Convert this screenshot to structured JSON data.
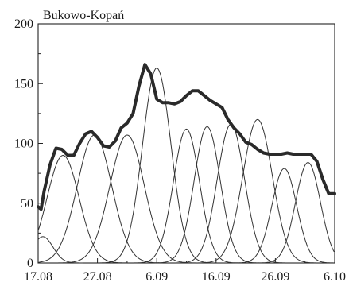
{
  "chart_data": {
    "type": "line",
    "title": "Bukowo-Kopań",
    "xlabel": "",
    "ylabel": "",
    "x_ticks": [
      "17.08",
      "27.08",
      "6.09",
      "16.09",
      "26.09",
      "6.10"
    ],
    "y_ticks": [
      "0",
      "50",
      "100",
      "150",
      "200"
    ],
    "xlim": [
      0,
      50
    ],
    "ylim": [
      0,
      200
    ],
    "grid": false,
    "total": {
      "x": [
        0,
        0.5,
        1,
        2,
        3,
        4,
        5,
        6,
        7,
        8,
        9,
        10,
        11,
        12,
        13,
        14,
        15,
        16,
        17,
        18,
        19,
        20,
        21,
        22,
        23,
        24,
        25,
        26,
        27,
        28,
        29,
        30,
        31,
        32,
        33,
        34,
        35,
        36,
        37,
        38,
        39,
        40,
        41,
        42,
        43,
        44,
        45,
        46,
        47,
        48,
        49,
        50
      ],
      "y": [
        47,
        45,
        60,
        82,
        96,
        95,
        90,
        90,
        100,
        108,
        110,
        105,
        98,
        97,
        102,
        113,
        117,
        125,
        148,
        166,
        158,
        137,
        134,
        134,
        133,
        135,
        140,
        144,
        144,
        140,
        136,
        133,
        130,
        120,
        113,
        108,
        101,
        99,
        95,
        92,
        91,
        91,
        91,
        92,
        91,
        91,
        91,
        91,
        85,
        70,
        58,
        58
      ]
    },
    "components": [
      {
        "center": 0.8,
        "peak": 22,
        "width": 1.7
      },
      {
        "center": 4.2,
        "peak": 90,
        "width": 2.7
      },
      {
        "center": 9.5,
        "peak": 107,
        "width": 2.9
      },
      {
        "center": 15,
        "peak": 107,
        "width": 2.9
      },
      {
        "center": 20,
        "peak": 163,
        "width": 2.4
      },
      {
        "center": 25,
        "peak": 112,
        "width": 2.2
      },
      {
        "center": 28.5,
        "peak": 114,
        "width": 2.2
      },
      {
        "center": 32.5,
        "peak": 116,
        "width": 2.3
      },
      {
        "center": 37,
        "peak": 120,
        "width": 2.5
      },
      {
        "center": 41.5,
        "peak": 79,
        "width": 2.1
      },
      {
        "center": 45.5,
        "peak": 84,
        "width": 2.1
      }
    ]
  }
}
